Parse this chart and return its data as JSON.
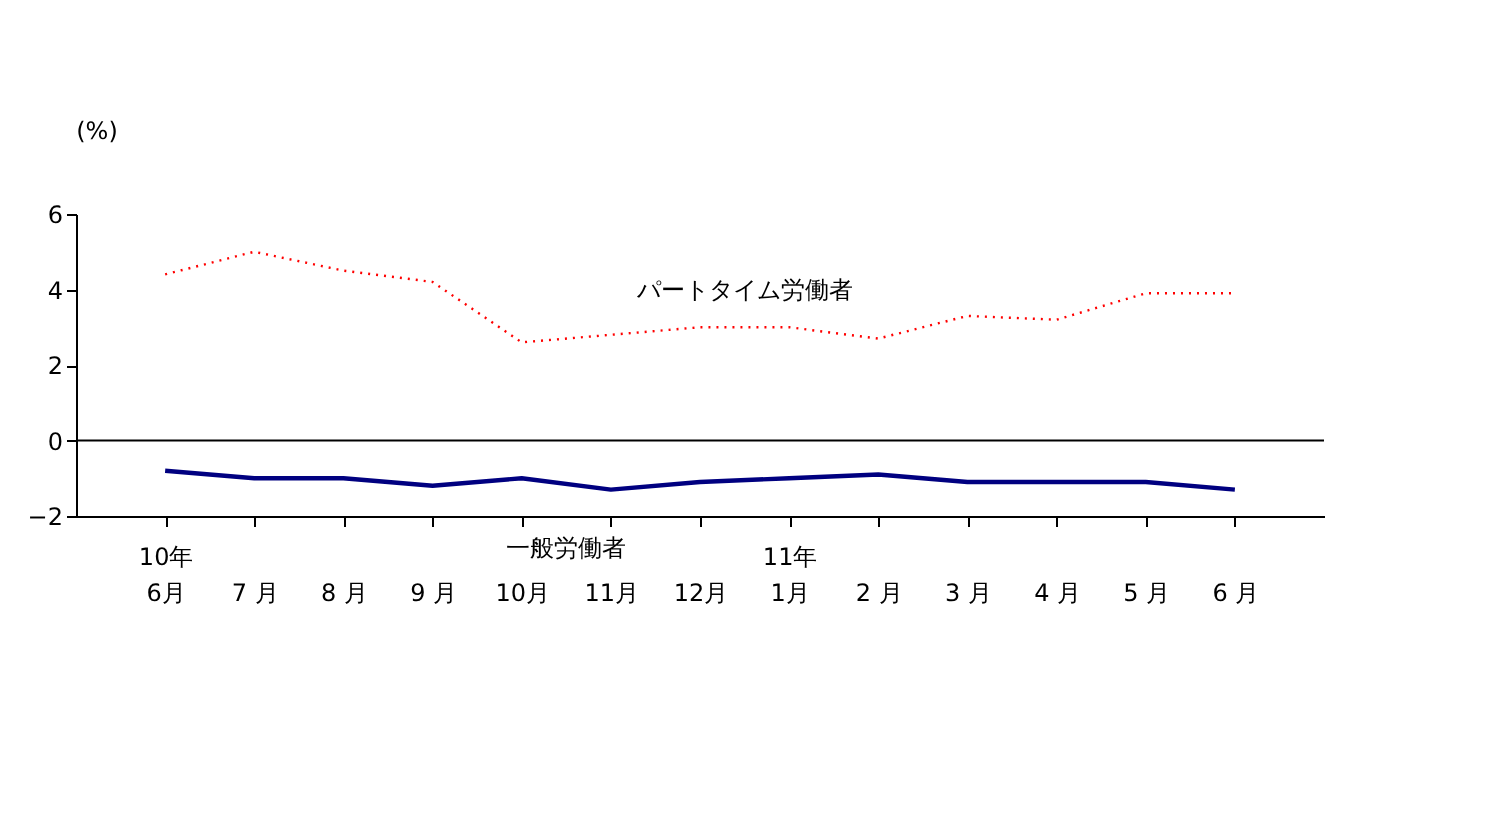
{
  "chart_data": {
    "type": "line",
    "ylabel": "(%)",
    "categories": [
      "10年\n6月",
      "7 月",
      "8 月",
      "9 月",
      "10月",
      "11月",
      "12月",
      "11年\n1月",
      "2 月",
      "3 月",
      "4 月",
      "5 月",
      "6 月"
    ],
    "series": [
      {
        "name": "パートタイム労働者",
        "color": "#ff0000",
        "line_style": "dotted",
        "values": [
          4.4,
          5.0,
          4.5,
          4.2,
          2.6,
          2.8,
          3.0,
          3.0,
          2.7,
          3.3,
          3.2,
          3.9,
          3.9
        ]
      },
      {
        "name": "一般労働者",
        "color": "#000080",
        "line_style": "solid",
        "values": [
          -0.8,
          -1.0,
          -1.0,
          -1.2,
          -1.0,
          -1.3,
          -1.1,
          -1.0,
          -0.9,
          -1.1,
          -1.1,
          -1.1,
          -1.3
        ]
      }
    ],
    "ylim": [
      -2,
      6
    ],
    "yticks": [
      -2,
      0,
      2,
      4,
      6
    ],
    "ref_lines": [
      {
        "axis": "y",
        "value": 0,
        "color": "#000000"
      }
    ],
    "grid": false,
    "marker": "none"
  }
}
